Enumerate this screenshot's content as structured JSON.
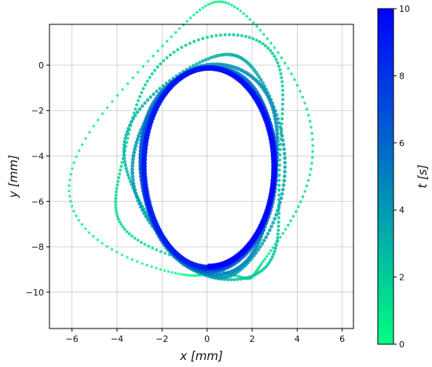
{
  "chart_data": {
    "type": "scatter",
    "xlabel": "x [mm]",
    "ylabel": "y [mm]",
    "xlim": [
      -7,
      6.5
    ],
    "ylim": [
      -11.6,
      1.8
    ],
    "xticks": [
      "−6",
      "−4",
      "−2",
      "0",
      "2",
      "4",
      "6"
    ],
    "xtick_values": [
      -6,
      -4,
      -2,
      0,
      2,
      4,
      6
    ],
    "yticks": [
      "0",
      "−2",
      "−4",
      "−6",
      "−8",
      "−10"
    ],
    "ytick_values": [
      0,
      -2,
      -4,
      -6,
      -8,
      -10
    ],
    "grid": true,
    "colorbar": {
      "label": "t [s]",
      "range": [
        0,
        10
      ],
      "ticks": [
        "0",
        "2",
        "4",
        "6",
        "8",
        "10"
      ],
      "tick_values": [
        0,
        2,
        4,
        6,
        8,
        10
      ],
      "colors": [
        "#00ff80",
        "#0000ff"
      ]
    },
    "series": [
      {
        "t_range": [
          0,
          10
        ],
        "x_center": 0.1,
        "y_center": -4.5,
        "x_amplitude_start": 5.1,
        "y_amplitude_start": 6.5,
        "x_amplitude_end": 2.85,
        "y_amplitude_end": 4.35,
        "perturbation": 1.8,
        "revolutions": 8
      }
    ]
  }
}
